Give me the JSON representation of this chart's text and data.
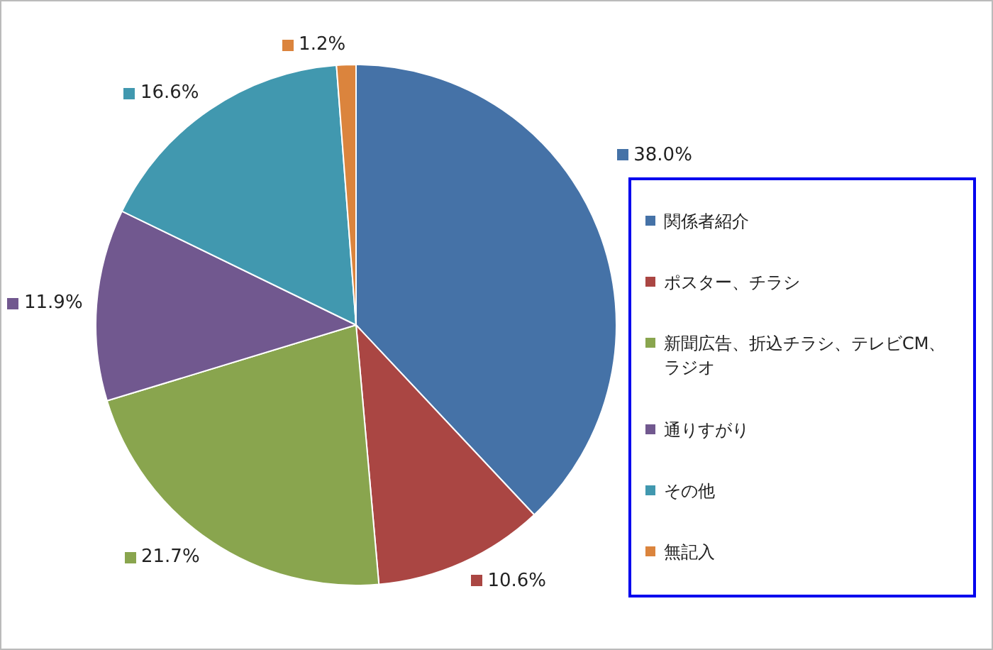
{
  "chart_data": {
    "type": "pie",
    "categories": [
      "関係者紹介",
      "ポスター、チラシ",
      "新聞広告、折込チラシ、テレビCM、ラジオ",
      "通りすがり",
      "その他",
      "無記入"
    ],
    "values": [
      38.0,
      10.6,
      21.7,
      11.9,
      16.6,
      1.2
    ],
    "value_labels": [
      "38.0%",
      "10.6%",
      "21.7%",
      "11.9%",
      "16.6%",
      "1.2%"
    ],
    "colors": [
      "#4572a7",
      "#aa4643",
      "#89a54e",
      "#71588f",
      "#4198af",
      "#db843d"
    ],
    "legend": "right"
  }
}
